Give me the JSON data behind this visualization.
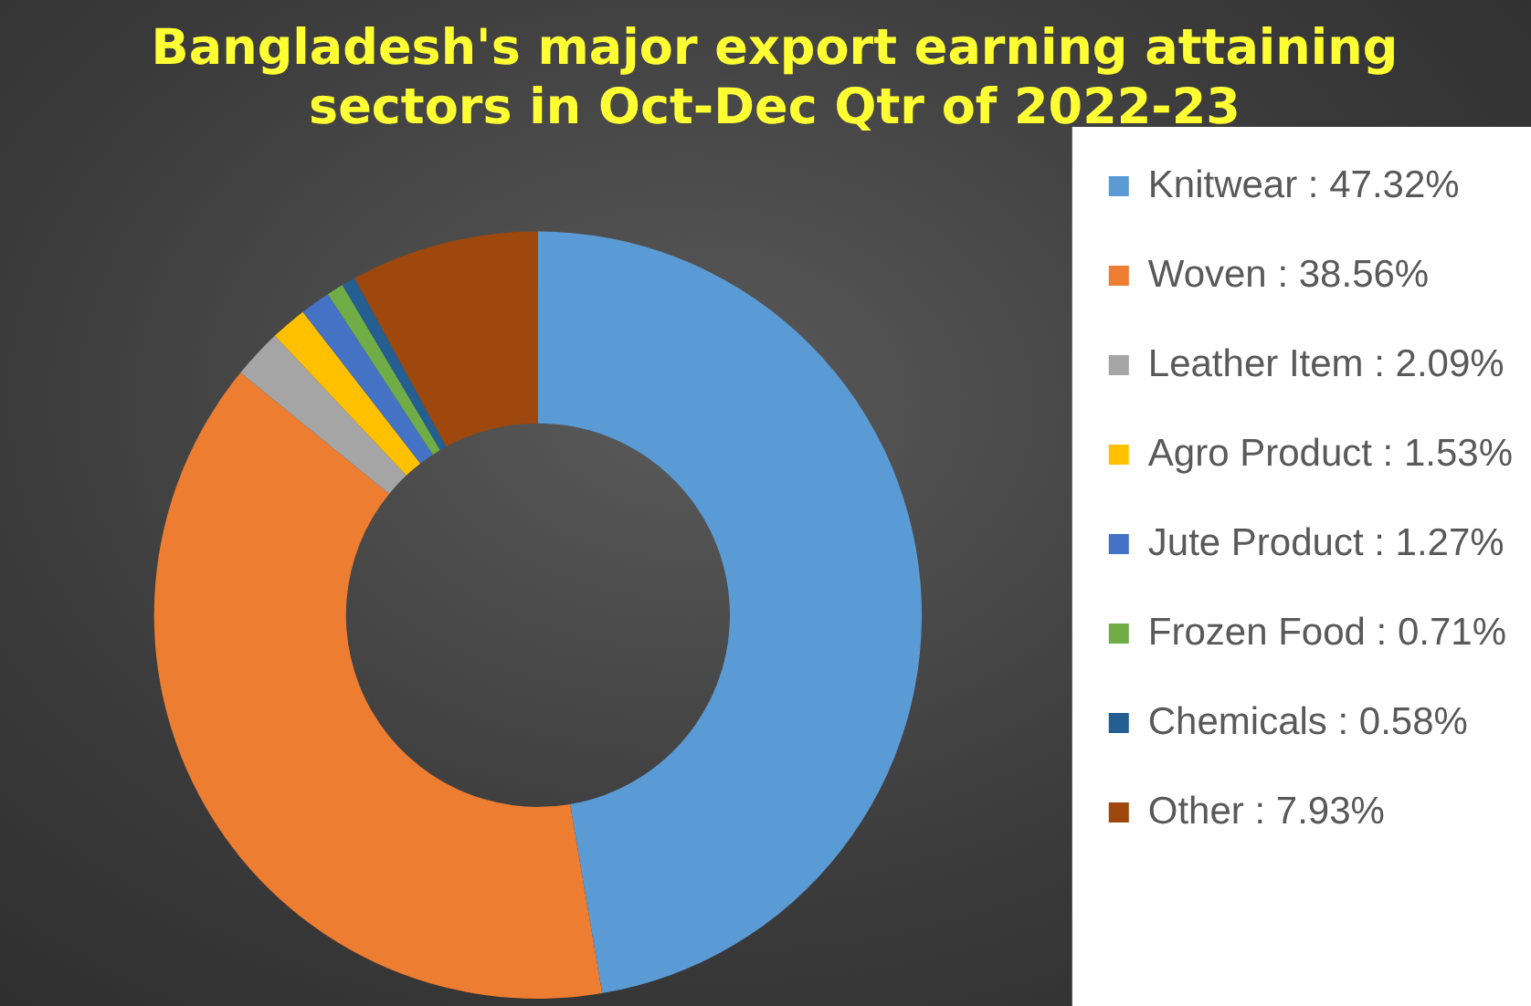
{
  "chart_data": {
    "type": "donut",
    "title": "Bangladesh's major export earning attaining sectors in Oct-Dec Qtr of 2022-23",
    "categories": [
      "Knitwear",
      "Woven",
      "Leather Item",
      "Agro Product",
      "Jute Product",
      "Frozen Food",
      "Chemicals",
      "Other"
    ],
    "values": [
      47.32,
      38.56,
      2.09,
      1.53,
      1.27,
      0.71,
      0.58,
      7.93
    ],
    "value_labels": [
      "47.32%",
      "38.56%",
      "2.09%",
      "1.53%",
      "1.27%",
      "0.71%",
      "0.58%",
      "7.93%"
    ],
    "colors": [
      "#5b9bd5",
      "#ed7d31",
      "#a5a5a5",
      "#ffc000",
      "#4472c4",
      "#70ad47",
      "#255e91",
      "#9e480e"
    ],
    "legend": "right"
  }
}
